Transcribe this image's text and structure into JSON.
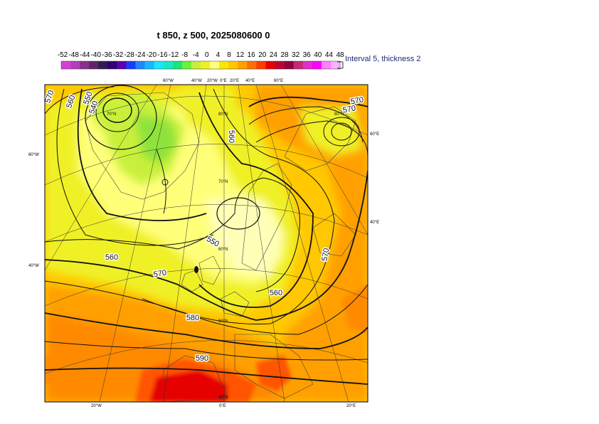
{
  "title": "t 850, z 500, 2025080600 0",
  "legend": {
    "ticks": [
      "-52",
      "-48",
      "-44",
      "-40",
      "-36",
      "-32",
      "-28",
      "-24",
      "-20",
      "-16",
      "-12",
      "-8",
      "-4",
      "0",
      "4",
      "8",
      "12",
      "16",
      "20",
      "24",
      "28",
      "32",
      "36",
      "40",
      "44",
      "48"
    ],
    "colors": [
      "#d53fd3",
      "#b23fb8",
      "#8a2e8e",
      "#5e2468",
      "#331a55",
      "#33006e",
      "#5a00b0",
      "#1a3cff",
      "#2088ff",
      "#16b8ff",
      "#19e6ff",
      "#19e6c8",
      "#19e678",
      "#6ef03a",
      "#c8f03a",
      "#f0f028",
      "#ffff7a",
      "#ffe600",
      "#ffc800",
      "#ffa000",
      "#ff7000",
      "#ff3c00",
      "#e60000",
      "#c00030",
      "#8e0040",
      "#c82878",
      "#e030c8",
      "#ff00ff",
      "#ff80ff",
      "#ffb0ff"
    ],
    "interval_note": "Interval 5, thickness 2"
  },
  "map": {
    "contour_labels": [
      {
        "text": "570"
      },
      {
        "text": "560"
      },
      {
        "text": "550"
      },
      {
        "text": "540"
      },
      {
        "text": "560"
      },
      {
        "text": "570"
      },
      {
        "text": "550"
      },
      {
        "text": "560"
      },
      {
        "text": "570"
      },
      {
        "text": "580"
      },
      {
        "text": "590"
      },
      {
        "text": "570"
      },
      {
        "text": "560"
      },
      {
        "text": "570"
      }
    ],
    "edge_labels": {
      "top": [
        "60°W",
        "40°W",
        "20°W",
        "0°E",
        "20°E",
        "40°E",
        "60°E"
      ],
      "left": [
        "60°W",
        "40°W"
      ],
      "right": [
        "60°E",
        "40°E"
      ],
      "bottom": [
        "20°W",
        "0°E",
        "20°E"
      ]
    },
    "lat_labels": [
      "80°N",
      "70°N",
      "60°N",
      "50°N",
      "40°N",
      "70°N",
      "80°N"
    ]
  }
}
